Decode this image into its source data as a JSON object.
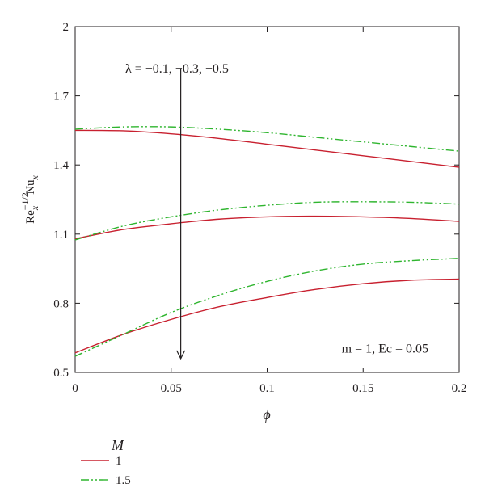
{
  "chart_data": {
    "type": "line",
    "xlabel": "ϕ",
    "ylabel_parts": {
      "base1": "Re",
      "sub1": "x",
      "sup1": "−1/2",
      "base2": "Nu",
      "sub2": "x"
    },
    "xlim": [
      0,
      0.2
    ],
    "ylim": [
      0.5,
      2
    ],
    "x_ticks": [
      {
        "value": 0,
        "label": "0"
      },
      {
        "value": 0.05,
        "label": "0.05"
      },
      {
        "value": 0.1,
        "label": "0.1"
      },
      {
        "value": 0.15,
        "label": "0.15"
      },
      {
        "value": 0.2,
        "label": "0.2"
      }
    ],
    "y_ticks": [
      {
        "value": 0.5,
        "label": "0.5"
      },
      {
        "value": 0.8,
        "label": "0.8"
      },
      {
        "value": 1.1,
        "label": "1.1"
      },
      {
        "value": 1.4,
        "label": "1.4"
      },
      {
        "value": 1.7,
        "label": "1.7"
      },
      {
        "value": 2,
        "label": "2"
      }
    ],
    "grid": false,
    "legend": {
      "title": "M",
      "placement": "below-left",
      "entries": [
        {
          "label": "1",
          "color": "#c8202f",
          "style": "solid"
        },
        {
          "label": "1.5",
          "color": "#2fb52f",
          "style": "dashdotdot"
        }
      ]
    },
    "series": [
      {
        "group": "M=1",
        "color": "#c8202f",
        "style": "solid",
        "x": [
          0,
          0.025,
          0.05,
          0.075,
          0.1,
          0.125,
          0.15,
          0.175,
          0.2
        ],
        "y": [
          1.55,
          1.548,
          1.535,
          1.515,
          1.49,
          1.465,
          1.44,
          1.415,
          1.39
        ]
      },
      {
        "group": "M=1",
        "color": "#c8202f",
        "style": "solid",
        "x": [
          0,
          0.025,
          0.05,
          0.075,
          0.1,
          0.125,
          0.15,
          0.175,
          0.2
        ],
        "y": [
          1.08,
          1.12,
          1.145,
          1.165,
          1.175,
          1.178,
          1.175,
          1.168,
          1.155
        ]
      },
      {
        "group": "M=1",
        "color": "#c8202f",
        "style": "solid",
        "x": [
          0,
          0.025,
          0.05,
          0.075,
          0.1,
          0.125,
          0.15,
          0.175,
          0.2
        ],
        "y": [
          0.585,
          0.665,
          0.73,
          0.785,
          0.825,
          0.86,
          0.885,
          0.9,
          0.905
        ]
      },
      {
        "group": "M=1.5",
        "color": "#2fb52f",
        "style": "dashdotdot",
        "x": [
          0,
          0.025,
          0.05,
          0.075,
          0.1,
          0.125,
          0.15,
          0.175,
          0.2
        ],
        "y": [
          1.555,
          1.565,
          1.565,
          1.555,
          1.54,
          1.52,
          1.5,
          1.48,
          1.46
        ]
      },
      {
        "group": "M=1.5",
        "color": "#2fb52f",
        "style": "dashdotdot",
        "x": [
          0,
          0.025,
          0.05,
          0.075,
          0.1,
          0.125,
          0.15,
          0.175,
          0.2
        ],
        "y": [
          1.075,
          1.135,
          1.175,
          1.205,
          1.225,
          1.238,
          1.24,
          1.238,
          1.23
        ]
      },
      {
        "group": "M=1.5",
        "color": "#2fb52f",
        "style": "dashdotdot",
        "x": [
          0,
          0.025,
          0.05,
          0.075,
          0.1,
          0.125,
          0.15,
          0.175,
          0.2
        ],
        "y": [
          0.57,
          0.665,
          0.76,
          0.835,
          0.895,
          0.94,
          0.97,
          0.985,
          0.995
        ]
      }
    ],
    "annotations": {
      "lambda_label": "λ = −0.1, −0.3, −0.5",
      "lambda_arrow": {
        "x": 0.055,
        "y_start": 1.82,
        "y_end": 0.56
      },
      "params_text": "m = 1, Ec = 0.05",
      "params_anchor": {
        "x": 0.2,
        "y": 0.6
      }
    }
  }
}
